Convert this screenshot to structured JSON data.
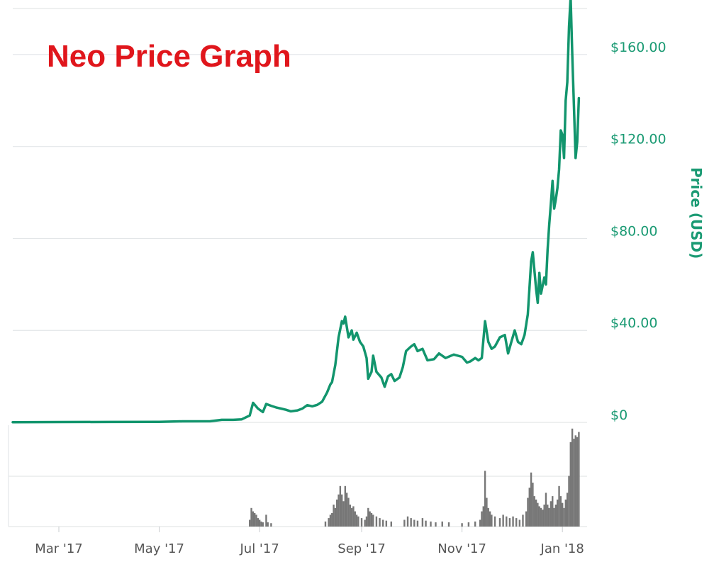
{
  "chart_data": {
    "type": "line",
    "title": "Neo Price Graph",
    "ylabel": "Price (USD)",
    "xlabel": "",
    "ylim": [
      0,
      180
    ],
    "y_ticks": [
      "$0",
      "$40.00",
      "$80.00",
      "$120.00",
      "$160.00"
    ],
    "y_tick_values": [
      0,
      40,
      80,
      120,
      160
    ],
    "x_ticks": [
      "Mar '17",
      "May '17",
      "Jul '17",
      "Sep '17",
      "Nov '17",
      "Jan '18"
    ],
    "x_tick_values": [
      "2017-03-01",
      "2017-05-01",
      "2017-07-01",
      "2017-09-01",
      "2017-11-01",
      "2018-01-01"
    ],
    "xlim": [
      "2017-02-01",
      "2018-01-16"
    ],
    "grid": true,
    "line_color": "#12956d",
    "volume_color": "#777777",
    "series": [
      {
        "values": [
          [
            "2017-02-01",
            0.1
          ],
          [
            "2017-03-01",
            0.15
          ],
          [
            "2017-04-01",
            0.2
          ],
          [
            "2017-05-01",
            0.25
          ],
          [
            "2017-05-15",
            0.45
          ],
          [
            "2017-06-01",
            0.5
          ],
          [
            "2017-06-08",
            1.1
          ],
          [
            "2017-06-15",
            1.1
          ],
          [
            "2017-06-20",
            1.3
          ],
          [
            "2017-06-25",
            3.0
          ],
          [
            "2017-06-27",
            8.5
          ],
          [
            "2017-06-30",
            6.0
          ],
          [
            "2017-07-03",
            4.5
          ],
          [
            "2017-07-05",
            8.0
          ],
          [
            "2017-07-08",
            7.2
          ],
          [
            "2017-07-11",
            6.5
          ],
          [
            "2017-07-14",
            6.0
          ],
          [
            "2017-07-17",
            5.5
          ],
          [
            "2017-07-20",
            4.8
          ],
          [
            "2017-07-24",
            5.2
          ],
          [
            "2017-07-27",
            6.0
          ],
          [
            "2017-07-30",
            7.5
          ],
          [
            "2017-08-02",
            7.0
          ],
          [
            "2017-08-05",
            7.6
          ],
          [
            "2017-08-08",
            9.0
          ],
          [
            "2017-08-11",
            13.0
          ],
          [
            "2017-08-13",
            16.5
          ],
          [
            "2017-08-14",
            17.5
          ],
          [
            "2017-08-16",
            25.0
          ],
          [
            "2017-08-18",
            37.0
          ],
          [
            "2017-08-20",
            44.0
          ],
          [
            "2017-08-21",
            43.0
          ],
          [
            "2017-08-22",
            46.0
          ],
          [
            "2017-08-24",
            37.0
          ],
          [
            "2017-08-26",
            40.0
          ],
          [
            "2017-08-27",
            36.0
          ],
          [
            "2017-08-29",
            39.0
          ],
          [
            "2017-08-31",
            35.0
          ],
          [
            "2017-09-02",
            33.0
          ],
          [
            "2017-09-04",
            28.0
          ],
          [
            "2017-09-05",
            19.0
          ],
          [
            "2017-09-07",
            22.0
          ],
          [
            "2017-09-08",
            29.0
          ],
          [
            "2017-09-10",
            22.0
          ],
          [
            "2017-09-13",
            19.5
          ],
          [
            "2017-09-15",
            15.5
          ],
          [
            "2017-09-17",
            20.0
          ],
          [
            "2017-09-19",
            21.0
          ],
          [
            "2017-09-21",
            18.0
          ],
          [
            "2017-09-24",
            19.5
          ],
          [
            "2017-09-26",
            24.0
          ],
          [
            "2017-09-28",
            31.0
          ],
          [
            "2017-10-01",
            33.0
          ],
          [
            "2017-10-03",
            34.0
          ],
          [
            "2017-10-05",
            31.0
          ],
          [
            "2017-10-08",
            32.0
          ],
          [
            "2017-10-11",
            27.0
          ],
          [
            "2017-10-15",
            27.5
          ],
          [
            "2017-10-18",
            30.0
          ],
          [
            "2017-10-22",
            28.0
          ],
          [
            "2017-10-27",
            29.5
          ],
          [
            "2017-11-01",
            28.5
          ],
          [
            "2017-11-04",
            26.0
          ],
          [
            "2017-11-06",
            26.5
          ],
          [
            "2017-11-09",
            28.0
          ],
          [
            "2017-11-11",
            27.0
          ],
          [
            "2017-11-13",
            28.0
          ],
          [
            "2017-11-15",
            44.0
          ],
          [
            "2017-11-17",
            35.0
          ],
          [
            "2017-11-19",
            32.0
          ],
          [
            "2017-11-21",
            33.0
          ],
          [
            "2017-11-24",
            37.0
          ],
          [
            "2017-11-27",
            38.0
          ],
          [
            "2017-11-29",
            30.0
          ],
          [
            "2017-12-01",
            35.0
          ],
          [
            "2017-12-03",
            40.0
          ],
          [
            "2017-12-05",
            35.0
          ],
          [
            "2017-12-07",
            34.0
          ],
          [
            "2017-12-09",
            38.0
          ],
          [
            "2017-12-11",
            47.0
          ],
          [
            "2017-12-13",
            70.0
          ],
          [
            "2017-12-14",
            74.0
          ],
          [
            "2017-12-16",
            58.0
          ],
          [
            "2017-12-17",
            52.0
          ],
          [
            "2017-12-18",
            65.0
          ],
          [
            "2017-12-19",
            56.0
          ],
          [
            "2017-12-21",
            63.0
          ],
          [
            "2017-12-22",
            60.0
          ],
          [
            "2017-12-23",
            75.0
          ],
          [
            "2017-12-24",
            86.0
          ],
          [
            "2017-12-25",
            95.0
          ],
          [
            "2017-12-26",
            105.0
          ],
          [
            "2017-12-27",
            93.0
          ],
          [
            "2017-12-28",
            97.0
          ],
          [
            "2017-12-29",
            102.0
          ],
          [
            "2017-12-30",
            110.0
          ],
          [
            "2017-12-31",
            127.0
          ],
          [
            "2018-01-01",
            125.0
          ],
          [
            "2018-01-02",
            115.0
          ],
          [
            "2018-01-03",
            140.0
          ],
          [
            "2018-01-04",
            148.0
          ],
          [
            "2018-01-05",
            172.0
          ],
          [
            "2018-01-06",
            185.0
          ],
          [
            "2018-01-07",
            160.0
          ],
          [
            "2018-01-08",
            138.0
          ],
          [
            "2018-01-09",
            115.0
          ],
          [
            "2018-01-10",
            122.0
          ],
          [
            "2018-01-11",
            141.0
          ]
        ]
      }
    ],
    "volume": {
      "ylim": [
        0,
        600
      ],
      "values": [
        [
          "2017-06-25",
          40
        ],
        [
          "2017-06-26",
          110
        ],
        [
          "2017-06-27",
          90
        ],
        [
          "2017-06-28",
          80
        ],
        [
          "2017-06-29",
          70
        ],
        [
          "2017-06-30",
          50
        ],
        [
          "2017-07-01",
          40
        ],
        [
          "2017-07-02",
          30
        ],
        [
          "2017-07-03",
          25
        ],
        [
          "2017-07-05",
          70
        ],
        [
          "2017-07-06",
          25
        ],
        [
          "2017-07-08",
          20
        ],
        [
          "2017-08-10",
          30
        ],
        [
          "2017-08-12",
          50
        ],
        [
          "2017-08-13",
          70
        ],
        [
          "2017-08-14",
          80
        ],
        [
          "2017-08-15",
          130
        ],
        [
          "2017-08-16",
          110
        ],
        [
          "2017-08-17",
          160
        ],
        [
          "2017-08-18",
          190
        ],
        [
          "2017-08-19",
          240
        ],
        [
          "2017-08-20",
          190
        ],
        [
          "2017-08-21",
          150
        ],
        [
          "2017-08-22",
          240
        ],
        [
          "2017-08-23",
          200
        ],
        [
          "2017-08-24",
          170
        ],
        [
          "2017-08-25",
          130
        ],
        [
          "2017-08-26",
          110
        ],
        [
          "2017-08-27",
          120
        ],
        [
          "2017-08-28",
          90
        ],
        [
          "2017-08-29",
          70
        ],
        [
          "2017-08-30",
          60
        ],
        [
          "2017-09-01",
          50
        ],
        [
          "2017-09-03",
          40
        ],
        [
          "2017-09-04",
          60
        ],
        [
          "2017-09-05",
          110
        ],
        [
          "2017-09-06",
          90
        ],
        [
          "2017-09-07",
          80
        ],
        [
          "2017-09-08",
          70
        ],
        [
          "2017-09-10",
          60
        ],
        [
          "2017-09-12",
          50
        ],
        [
          "2017-09-14",
          40
        ],
        [
          "2017-09-16",
          35
        ],
        [
          "2017-09-19",
          30
        ],
        [
          "2017-09-27",
          40
        ],
        [
          "2017-09-29",
          60
        ],
        [
          "2017-10-01",
          50
        ],
        [
          "2017-10-03",
          40
        ],
        [
          "2017-10-05",
          35
        ],
        [
          "2017-10-08",
          50
        ],
        [
          "2017-10-10",
          35
        ],
        [
          "2017-10-13",
          30
        ],
        [
          "2017-10-16",
          25
        ],
        [
          "2017-10-20",
          30
        ],
        [
          "2017-10-24",
          25
        ],
        [
          "2017-11-01",
          20
        ],
        [
          "2017-11-05",
          25
        ],
        [
          "2017-11-09",
          30
        ],
        [
          "2017-11-12",
          40
        ],
        [
          "2017-11-13",
          90
        ],
        [
          "2017-11-14",
          120
        ],
        [
          "2017-11-15",
          330
        ],
        [
          "2017-11-16",
          170
        ],
        [
          "2017-11-17",
          110
        ],
        [
          "2017-11-18",
          90
        ],
        [
          "2017-11-19",
          70
        ],
        [
          "2017-11-21",
          60
        ],
        [
          "2017-11-24",
          50
        ],
        [
          "2017-11-26",
          70
        ],
        [
          "2017-11-28",
          60
        ],
        [
          "2017-11-30",
          50
        ],
        [
          "2017-12-02",
          60
        ],
        [
          "2017-12-04",
          50
        ],
        [
          "2017-12-06",
          40
        ],
        [
          "2017-12-08",
          70
        ],
        [
          "2017-12-10",
          90
        ],
        [
          "2017-12-11",
          170
        ],
        [
          "2017-12-12",
          230
        ],
        [
          "2017-12-13",
          320
        ],
        [
          "2017-12-14",
          260
        ],
        [
          "2017-12-15",
          180
        ],
        [
          "2017-12-16",
          160
        ],
        [
          "2017-12-17",
          140
        ],
        [
          "2017-12-18",
          120
        ],
        [
          "2017-12-19",
          110
        ],
        [
          "2017-12-20",
          100
        ],
        [
          "2017-12-21",
          130
        ],
        [
          "2017-12-22",
          200
        ],
        [
          "2017-12-23",
          130
        ],
        [
          "2017-12-24",
          110
        ],
        [
          "2017-12-25",
          150
        ],
        [
          "2017-12-26",
          180
        ],
        [
          "2017-12-27",
          110
        ],
        [
          "2017-12-28",
          130
        ],
        [
          "2017-12-29",
          160
        ],
        [
          "2017-12-30",
          240
        ],
        [
          "2017-12-31",
          180
        ],
        [
          "2018-01-01",
          140
        ],
        [
          "2018-01-02",
          110
        ],
        [
          "2018-01-03",
          160
        ],
        [
          "2018-01-04",
          200
        ],
        [
          "2018-01-05",
          300
        ],
        [
          "2018-01-06",
          500
        ],
        [
          "2018-01-07",
          580
        ],
        [
          "2018-01-08",
          520
        ],
        [
          "2018-01-09",
          540
        ],
        [
          "2018-01-10",
          530
        ],
        [
          "2018-01-11",
          560
        ]
      ]
    }
  }
}
